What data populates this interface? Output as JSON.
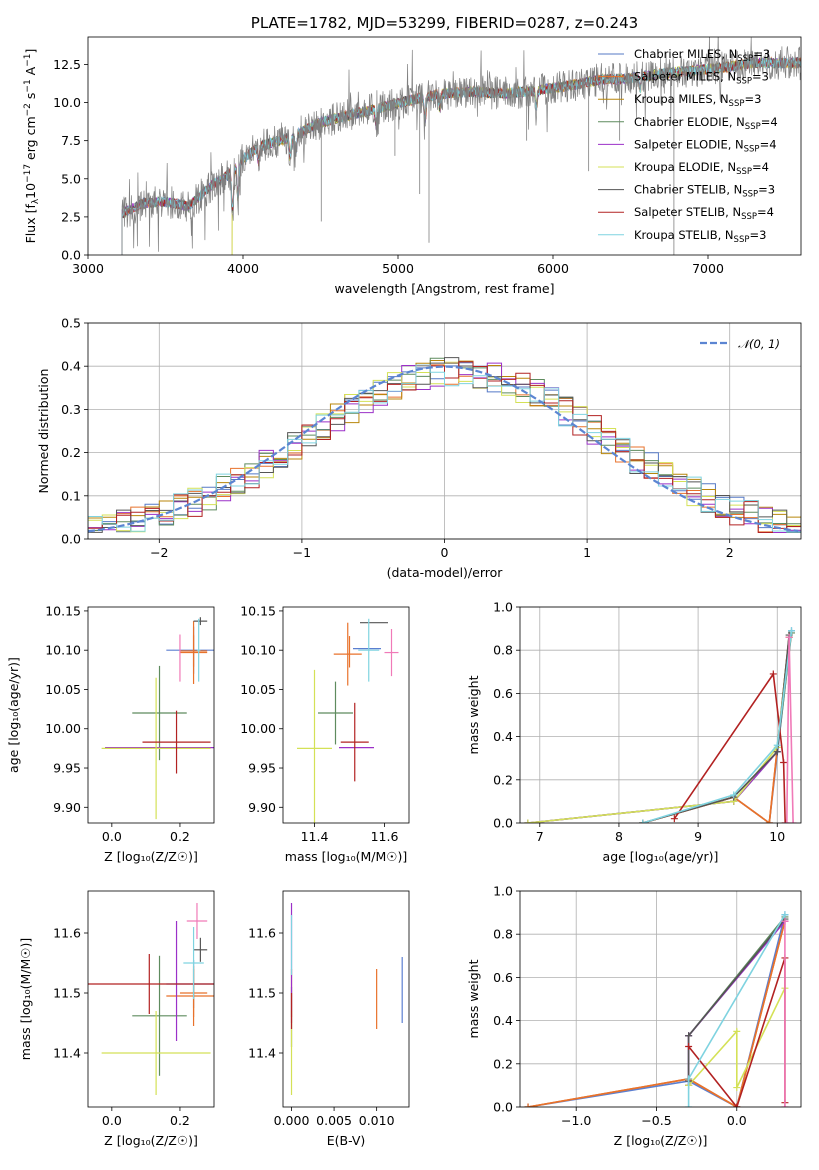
{
  "title": "PLATE=1782, MJD=53299, FIBERID=0287, z=0.243",
  "legend_spectrum": [
    {
      "label": "Chabrier MILES, N$_{SSP}$=3",
      "text_main": "Chabrier MILES, N",
      "text_sub": "SSP",
      "text_end": "=3",
      "color": "#5579c6"
    },
    {
      "label": "Salpeter MILES, N$_{SSP}$=3",
      "text_main": "Salpeter MILES, N",
      "text_sub": "SSP",
      "text_end": "=3",
      "color": "#e8722b"
    },
    {
      "label": "Kroupa MILES, N$_{SSP}$=3",
      "text_main": "Kroupa MILES, N",
      "text_sub": "SSP",
      "text_end": "=3",
      "color": "#b8860b"
    },
    {
      "label": "Chabrier ELODIE, N$_{SSP}$=4",
      "text_main": "Chabrier ELODIE, N",
      "text_sub": "SSP",
      "text_end": "=4",
      "color": "#5e8b5e"
    },
    {
      "label": "Salpeter ELODIE, N$_{SSP}$=4",
      "text_main": "Salpeter ELODIE, N",
      "text_sub": "SSP",
      "text_end": "=4",
      "color": "#9b30c8"
    },
    {
      "label": "Kroupa ELODIE, N$_{SSP}$=4",
      "text_main": "Kroupa ELODIE, N",
      "text_sub": "SSP",
      "text_end": "=4",
      "color": "#d4e157"
    },
    {
      "label": "Chabrier STELIB, N$_{SSP}$=3",
      "text_main": "Chabrier STELIB, N",
      "text_sub": "SSP",
      "text_end": "=3",
      "color": "#555555"
    },
    {
      "label": "Salpeter STELIB, N$_{SSP}$=4",
      "text_main": "Salpeter STELIB, N",
      "text_sub": "SSP",
      "text_end": "=4",
      "color": "#b22222"
    },
    {
      "label": "Kroupa STELIB, N$_{SSP}$=3",
      "text_main": "Kroupa STELIB, N",
      "text_sub": "SSP",
      "text_end": "=3",
      "color": "#7fd3e0"
    }
  ],
  "chart_data": [
    {
      "id": "spectrum",
      "type": "line",
      "title": "PLATE=1782, MJD=53299, FIBERID=0287, z=0.243",
      "xlabel": "wavelength [Angstrom, rest frame]",
      "ylabel_main": "Flux [f",
      "ylabel_sub": "λ",
      "ylabel_rest": "10",
      "ylabel_exp1": "−17",
      "ylabel_mid": " erg cm",
      "ylabel_exp2": "−2",
      "ylabel_mid2": " s",
      "ylabel_exp3": "−1",
      "ylabel_mid3": " A",
      "ylabel_exp4": "−1",
      "ylabel_end": "]",
      "xlim": [
        3000,
        7600
      ],
      "ylim": [
        0,
        14.3
      ],
      "xticks": [
        3000,
        4000,
        5000,
        6000,
        7000
      ],
      "xtick_labels": [
        "3000",
        "4000",
        "5000",
        "6000",
        "7000"
      ],
      "yticks": [
        0,
        2.5,
        5,
        7.5,
        10,
        12.5
      ],
      "ytick_labels": [
        "0.0",
        "2.5",
        "5.0",
        "7.5",
        "10.0",
        "12.5"
      ],
      "data_color": "#808080",
      "continuum": {
        "x": [
          3220,
          3350,
          3500,
          3650,
          3800,
          3900,
          4000,
          4100,
          4200,
          4300,
          4500,
          4700,
          4900,
          5100,
          5300,
          5500,
          5700,
          5900,
          6100,
          6300,
          6500,
          6700,
          6900,
          7100,
          7300
        ],
        "y": [
          2.7,
          3.4,
          3.5,
          3.2,
          4.6,
          5.2,
          6.3,
          7.1,
          7.4,
          7.7,
          8.7,
          9.2,
          9.7,
          10.2,
          10.6,
          10.7,
          10.6,
          10.8,
          11.1,
          11.5,
          11.6,
          11.9,
          12.1,
          12.3,
          12.6
        ]
      },
      "model_starts_x": [
        3220,
        3220,
        3930,
        3220,
        3220,
        3930,
        3220,
        3220,
        3220
      ],
      "dips": [
        {
          "x": 3933,
          "depth": 2.6
        },
        {
          "x": 3968,
          "depth": 2.2
        },
        {
          "x": 4101,
          "depth": 1.0
        },
        {
          "x": 4304,
          "depth": 1.4
        },
        {
          "x": 4340,
          "depth": 1.2
        },
        {
          "x": 4861,
          "depth": 1.1
        },
        {
          "x": 5175,
          "depth": 1.5
        },
        {
          "x": 5270,
          "depth": 0.9
        },
        {
          "x": 5893,
          "depth": 1.0
        },
        {
          "x": 6563,
          "depth": 0.8
        }
      ],
      "data_spikes": [
        {
          "x": 4505,
          "y": 2.2
        },
        {
          "x": 5200,
          "y": 0.8
        },
        {
          "x": 5140,
          "y": 4.0
        },
        {
          "x": 6780,
          "y": 0.0
        },
        {
          "x": 6430,
          "y": 7.5
        },
        {
          "x": 6230,
          "y": 5.5
        },
        {
          "x": 5830,
          "y": 7.5
        },
        {
          "x": 4980,
          "y": 6.5
        }
      ]
    },
    {
      "id": "residuals",
      "type": "line",
      "xlabel": "(data-model)/error",
      "ylabel": "Normed distribution",
      "xlim": [
        -2.5,
        2.5
      ],
      "ylim": [
        0,
        0.5
      ],
      "xticks": [
        -2,
        -1,
        0,
        1,
        2
      ],
      "xtick_labels": [
        "−2",
        "−1",
        "0",
        "1",
        "2"
      ],
      "yticks": [
        0,
        0.1,
        0.2,
        0.3,
        0.4,
        0.5
      ],
      "ytick_labels": [
        "0.0",
        "0.1",
        "0.2",
        "0.3",
        "0.4",
        "0.5"
      ],
      "grid": true,
      "legend_label": "𝒩(0, 1)",
      "legend_position": "top-right",
      "gauss_color": "#5b85d2",
      "bin_width": 0.1
    },
    {
      "id": "age_vs_Z",
      "type": "scatter",
      "xlabel": "Z [log₁₀(Z/Z☉)]",
      "ylabel": "age  [log₁₀(age/yr)]",
      "xlim": [
        -0.07,
        0.3
      ],
      "ylim": [
        9.88,
        10.155
      ],
      "xticks": [
        0,
        0.2
      ],
      "xtick_labels": [
        "0.0",
        "0.2"
      ],
      "yticks": [
        9.9,
        9.95,
        10.0,
        10.05,
        10.1,
        10.15
      ],
      "ytick_labels": [
        "9.90",
        "9.95",
        "10.00",
        "10.05",
        "10.10",
        "10.15"
      ],
      "points": [
        {
          "series": 0,
          "x": 0.24,
          "y": 10.1,
          "xerr": 0.08,
          "yerr": 0.03
        },
        {
          "series": 1,
          "x": 0.24,
          "y": 10.097,
          "xerr": 0.04,
          "yerr": 0.04
        },
        {
          "series": 2,
          "x": 0.24,
          "y": 10.099,
          "xerr": 0.04,
          "yerr": 0.02
        },
        {
          "series": 3,
          "x": 0.14,
          "y": 10.02,
          "xerr": 0.08,
          "yerr": 0.06
        },
        {
          "series": 4,
          "x": 0.14,
          "y": 9.976,
          "xerr": 0.16,
          "yerr": 0.001
        },
        {
          "series": 5,
          "x": 0.13,
          "y": 9.975,
          "xerr": 0.16,
          "yerr": 0.09
        },
        {
          "series": 6,
          "x": 0.26,
          "y": 10.137,
          "xerr": 0.02,
          "yerr": 0.005
        },
        {
          "series": 7,
          "x": 0.19,
          "y": 9.983,
          "xerr": 0.1,
          "yerr": 0.04
        },
        {
          "series": 8,
          "x": 0.255,
          "y": 10.1,
          "xerr": 0.005,
          "yerr": 0.04
        },
        {
          "series": 9,
          "x": 0.2,
          "y": 10.09,
          "xerr": 0.0,
          "yerr": 0.03
        }
      ]
    },
    {
      "id": "age_vs_mass",
      "type": "scatter",
      "xlabel": "mass [log₁₀(M/M☉)]",
      "xlim": [
        11.31,
        11.67
      ],
      "ylim": [
        9.88,
        10.155
      ],
      "xticks": [
        11.4,
        11.6
      ],
      "xtick_labels": [
        "11.4",
        "11.6"
      ],
      "yticks": [
        9.9,
        9.95,
        10.0,
        10.05,
        10.1,
        10.15
      ],
      "ytick_labels": [
        "9.90",
        "9.95",
        "10.00",
        "10.05",
        "10.10",
        "10.15"
      ],
      "points": [
        {
          "series": 0,
          "x": 11.55,
          "y": 10.102,
          "xerr": 0.04,
          "yerr": 0.0
        },
        {
          "series": 1,
          "x": 11.495,
          "y": 10.095,
          "xerr": 0.04,
          "yerr": 0.04
        },
        {
          "series": 2,
          "x": 11.5,
          "y": 10.098,
          "xerr": 0.0,
          "yerr": 0.02
        },
        {
          "series": 3,
          "x": 11.46,
          "y": 10.02,
          "xerr": 0.05,
          "yerr": 0.04
        },
        {
          "series": 4,
          "x": 11.52,
          "y": 9.976,
          "xerr": 0.05,
          "yerr": 0.0
        },
        {
          "series": 5,
          "x": 11.4,
          "y": 9.975,
          "xerr": 0.05,
          "yerr": 0.1
        },
        {
          "series": 6,
          "x": 11.57,
          "y": 10.135,
          "xerr": 0.04,
          "yerr": 0.0
        },
        {
          "series": 7,
          "x": 11.515,
          "y": 9.983,
          "xerr": 0.04,
          "yerr": 0.05
        },
        {
          "series": 8,
          "x": 11.555,
          "y": 10.1,
          "xerr": 0.03,
          "yerr": 0.04
        },
        {
          "series": 9,
          "x": 11.62,
          "y": 10.097,
          "xerr": 0.02,
          "yerr": 0.03
        }
      ]
    },
    {
      "id": "mass_weight_vs_age",
      "type": "line",
      "xlabel": "age  [log₁₀(age/yr)]",
      "ylabel": "mass weight",
      "xlim": [
        6.75,
        10.3
      ],
      "ylim": [
        0,
        1
      ],
      "xticks": [
        7,
        8,
        9,
        10
      ],
      "xtick_labels": [
        "7",
        "8",
        "9",
        "10"
      ],
      "yticks": [
        0,
        0.2,
        0.4,
        0.6,
        0.8,
        1.0
      ],
      "ytick_labels": [
        "0.0",
        "0.2",
        "0.4",
        "0.6",
        "0.8",
        "1.0"
      ],
      "grid": true,
      "series": [
        {
          "series": 0,
          "x": [
            8.3,
            9.45,
            9.9,
            10.18
          ],
          "y": [
            0.0,
            0.12,
            0.0,
            0.89
          ]
        },
        {
          "series": 1,
          "x": [
            8.3,
            9.45,
            9.9,
            10.15
          ],
          "y": [
            0.0,
            0.12,
            0.0,
            0.86
          ]
        },
        {
          "series": 2,
          "x": [
            8.3,
            9.45,
            9.9,
            10.15
          ],
          "y": [
            0.0,
            0.12,
            0.0,
            0.86
          ]
        },
        {
          "series": 3,
          "x": [
            6.85,
            9.45,
            10.0,
            10.18
          ],
          "y": [
            0.0,
            0.1,
            0.33,
            0.88
          ]
        },
        {
          "series": 4,
          "x": [
            6.85,
            9.45,
            10.0,
            10.15
          ],
          "y": [
            0.0,
            0.1,
            0.33,
            0.86
          ]
        },
        {
          "series": 5,
          "x": [
            6.85,
            9.45,
            10.0,
            10.15
          ],
          "y": [
            0.0,
            0.1,
            0.35,
            0.86
          ]
        },
        {
          "series": 6,
          "x": [
            8.3,
            9.45,
            10.0,
            10.15
          ],
          "y": [
            0.0,
            0.12,
            0.33,
            0.87
          ]
        },
        {
          "series": 7,
          "x": [
            8.7,
            9.95,
            10.08,
            10.1
          ],
          "y": [
            0.02,
            0.69,
            0.28,
            0.0
          ]
        },
        {
          "series": 8,
          "x": [
            8.3,
            9.45,
            10.0,
            10.18
          ],
          "y": [
            0.0,
            0.13,
            0.36,
            0.89
          ]
        },
        {
          "series": 9,
          "x": [
            10.12,
            10.15,
            10.2
          ],
          "y": [
            0.0,
            0.86,
            0.0
          ]
        }
      ]
    },
    {
      "id": "mass_vs_Z",
      "type": "scatter",
      "xlabel": "Z [log₁₀(Z/Z☉)]",
      "ylabel": "mass [log₁₀(M/M☉)]",
      "xlim": [
        -0.07,
        0.3
      ],
      "ylim": [
        11.31,
        11.67
      ],
      "xticks": [
        0,
        0.2
      ],
      "xtick_labels": [
        "0.0",
        "0.2"
      ],
      "yticks": [
        11.4,
        11.5,
        11.6
      ],
      "ytick_labels": [
        "11.4",
        "11.5",
        "11.6"
      ],
      "points": [
        {
          "series": 0,
          "x": 0.24,
          "y": 11.515,
          "xerr": 0.08,
          "yerr": 0.04
        },
        {
          "series": 1,
          "x": 0.24,
          "y": 11.495,
          "xerr": 0.08,
          "yerr": 0.05
        },
        {
          "series": 2,
          "x": 0.24,
          "y": 11.5,
          "xerr": 0.04,
          "yerr": 0.04
        },
        {
          "series": 3,
          "x": 0.14,
          "y": 11.462,
          "xerr": 0.08,
          "yerr": 0.1
        },
        {
          "series": 4,
          "x": 0.19,
          "y": 11.52,
          "xerr": 0.0,
          "yerr": 0.1
        },
        {
          "series": 5,
          "x": 0.13,
          "y": 11.4,
          "xerr": 0.16,
          "yerr": 0.07
        },
        {
          "series": 6,
          "x": 0.26,
          "y": 11.572,
          "xerr": 0.02,
          "yerr": 0.02
        },
        {
          "series": 7,
          "x": 0.11,
          "y": 11.515,
          "xerr": 0.19,
          "yerr": 0.05
        },
        {
          "series": 8,
          "x": 0.24,
          "y": 11.55,
          "xerr": 0.03,
          "yerr": 0.06
        },
        {
          "series": 9,
          "x": 0.25,
          "y": 11.62,
          "xerr": 0.03,
          "yerr": 0.03
        }
      ]
    },
    {
      "id": "mass_vs_EBV",
      "type": "scatter",
      "xlabel": "E(B-V)",
      "xlim": [
        -0.001,
        0.0138
      ],
      "ylim": [
        11.31,
        11.67
      ],
      "xticks": [
        0.0,
        0.005,
        0.01
      ],
      "xtick_labels": [
        "0.000",
        "0.005",
        "0.010"
      ],
      "yticks": [
        11.4,
        11.5,
        11.6
      ],
      "ytick_labels": [
        "11.4",
        "11.5",
        "11.6"
      ],
      "points": [
        {
          "series": 0,
          "x": 0.013,
          "y": 11.505,
          "xerr": 0.0,
          "yerr": 0.055
        },
        {
          "series": 1,
          "x": 0.01,
          "y": 11.49,
          "xerr": 0.0,
          "yerr": 0.05
        },
        {
          "series": 2,
          "x": 0.0,
          "y": 11.5,
          "xerr": 0.0,
          "yerr": 0.04
        },
        {
          "series": 3,
          "x": 0.0,
          "y": 11.46,
          "xerr": 0.0,
          "yerr": 0.05
        },
        {
          "series": 4,
          "x": 0.0,
          "y": 11.55,
          "xerr": 0.0,
          "yerr": 0.1
        },
        {
          "series": 5,
          "x": 0.0,
          "y": 11.4,
          "xerr": 0.0,
          "yerr": 0.07
        },
        {
          "series": 7,
          "x": 0.0,
          "y": 11.47,
          "xerr": 0.0,
          "yerr": 0.03
        },
        {
          "series": 8,
          "x": 0.0,
          "y": 11.58,
          "xerr": 0.0,
          "yerr": 0.05
        }
      ]
    },
    {
      "id": "mass_weight_vs_Z",
      "type": "line",
      "xlabel": "Z [log₁₀(Z/Z☉)]",
      "ylabel": "mass weight",
      "xlim": [
        -1.35,
        0.4
      ],
      "ylim": [
        0,
        1
      ],
      "xticks": [
        -1.0,
        -0.5,
        0.0
      ],
      "xtick_labels": [
        "−1.0",
        "−0.5",
        "0.0"
      ],
      "yticks": [
        0,
        0.2,
        0.4,
        0.6,
        0.8,
        1.0
      ],
      "ytick_labels": [
        "0.0",
        "0.2",
        "0.4",
        "0.6",
        "0.8",
        "1.0"
      ],
      "grid": true,
      "series": [
        {
          "series": 0,
          "x": [
            -1.3,
            -0.3,
            0.0,
            0.3
          ],
          "y": [
            0.0,
            0.12,
            0.0,
            0.89
          ]
        },
        {
          "series": 1,
          "x": [
            -1.3,
            -0.3,
            0.0,
            0.3
          ],
          "y": [
            0.0,
            0.13,
            0.0,
            0.86
          ]
        },
        {
          "series": 2,
          "x": [
            -1.3,
            -0.3,
            0.0,
            0.3
          ],
          "y": [
            0.0,
            0.13,
            0.0,
            0.86
          ]
        },
        {
          "series": 3,
          "x": [
            -0.3,
            -0.3,
            0.3
          ],
          "y": [
            0.1,
            0.33,
            0.88
          ]
        },
        {
          "series": 4,
          "x": [
            -0.3,
            -0.3,
            0.3
          ],
          "y": [
            0.1,
            0.33,
            0.86
          ]
        },
        {
          "series": 5,
          "x": [
            -0.3,
            0.0,
            0.0,
            0.3
          ],
          "y": [
            0.1,
            0.35,
            0.09,
            0.55
          ]
        },
        {
          "series": 6,
          "x": [
            -0.3,
            -0.3,
            0.3
          ],
          "y": [
            0.12,
            0.33,
            0.87
          ]
        },
        {
          "series": 7,
          "x": [
            -0.3,
            0.0,
            0.3,
            0.3
          ],
          "y": [
            0.28,
            0.0,
            0.69,
            0.02
          ]
        },
        {
          "series": 8,
          "x": [
            -0.3,
            -0.3,
            0.3
          ],
          "y": [
            0.0,
            0.13,
            0.89
          ]
        },
        {
          "series": 9,
          "x": [
            0.3,
            0.3
          ],
          "y": [
            0.0,
            0.86
          ]
        }
      ]
    }
  ],
  "series_colors": [
    "#5b7fd0",
    "#e8722b",
    "#e8722b",
    "#5e8b5e",
    "#9b30c8",
    "#d4e157",
    "#555555",
    "#b22222",
    "#7fd3e0",
    "#f07ab8"
  ]
}
